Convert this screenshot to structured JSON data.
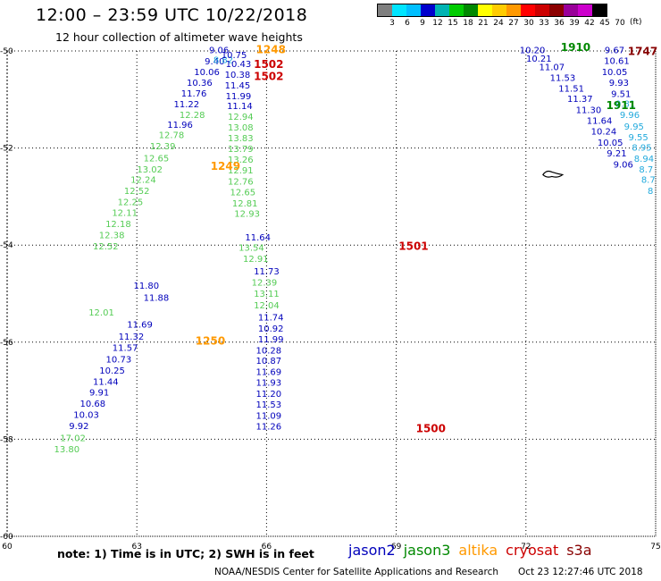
{
  "header": {
    "title": "12:00 – 23:59 UTC 10/22/2018",
    "subtitle": "12 hour collection of altimeter wave heights"
  },
  "legend": {
    "unit": "(ft)",
    "ticks": [
      "3",
      "6",
      "9",
      "12",
      "15",
      "18",
      "21",
      "24",
      "27",
      "30",
      "33",
      "36",
      "39",
      "42",
      "45",
      "70"
    ],
    "colors": [
      "#7f7f7f",
      "#00e5ff",
      "#00bfff",
      "#0000cd",
      "#00b3b3",
      "#00cc00",
      "#008800",
      "#ffff00",
      "#ffcc00",
      "#ff9900",
      "#ff0000",
      "#cc0000",
      "#8b0000",
      "#990099",
      "#cc00cc",
      "#000000"
    ]
  },
  "map": {
    "lon_range": [
      60,
      75
    ],
    "lat_range": [
      -60,
      -50
    ],
    "lon_ticks": [
      "60",
      "63",
      "66",
      "69",
      "72",
      "75"
    ],
    "lat_ticks": [
      "-50",
      "-52",
      "-54",
      "-56",
      "-58",
      "-60"
    ]
  },
  "colors": {
    "jason2": "#0000bb",
    "jason3": "#008800",
    "altika": "#ff9900",
    "cryosat": "#cc0000",
    "s3a": "#880000",
    "light_green": "#55cc55",
    "cyan": "#22aadd",
    "land": "#000000"
  },
  "tracks": [
    {
      "name": "track-a",
      "color_key": "jason2",
      "points": [
        {
          "lon": 64.9,
          "lat": -50.05,
          "v": "9.06"
        },
        {
          "lon": 64.8,
          "lat": -50.28,
          "v": "9.40"
        },
        {
          "lon": 64.62,
          "lat": -50.5,
          "v": "10.06"
        },
        {
          "lon": 64.45,
          "lat": -50.72,
          "v": "10.36"
        },
        {
          "lon": 64.32,
          "lat": -50.94,
          "v": "11.76"
        },
        {
          "lon": 64.15,
          "lat": -51.16,
          "v": "11.22"
        },
        {
          "lon": 64.0,
          "lat": -51.58,
          "v": "11.96"
        },
        {
          "lon": 63.22,
          "lat": -54.9,
          "v": "11.80"
        },
        {
          "lon": 63.45,
          "lat": -55.15,
          "v": "11.88"
        },
        {
          "lon": 63.07,
          "lat": -55.7,
          "v": "11.69"
        },
        {
          "lon": 62.87,
          "lat": -55.95,
          "v": "11.32"
        },
        {
          "lon": 62.73,
          "lat": -56.18,
          "v": "11.57"
        },
        {
          "lon": 62.58,
          "lat": -56.42,
          "v": "10.73"
        },
        {
          "lon": 62.43,
          "lat": -56.65,
          "v": "10.25"
        },
        {
          "lon": 62.28,
          "lat": -56.88,
          "v": "11.44"
        },
        {
          "lon": 62.13,
          "lat": -57.1,
          "v": "9.91"
        },
        {
          "lon": 61.98,
          "lat": -57.33,
          "v": "10.68"
        },
        {
          "lon": 61.83,
          "lat": -57.56,
          "v": "10.03"
        },
        {
          "lon": 61.66,
          "lat": -57.79,
          "v": "9.92"
        }
      ]
    },
    {
      "name": "track-b",
      "color_key": "light_green",
      "points": [
        {
          "lon": 64.28,
          "lat": -51.38,
          "v": "12.28"
        },
        {
          "lon": 63.8,
          "lat": -51.8,
          "v": "12.78"
        },
        {
          "lon": 63.6,
          "lat": -52.03,
          "v": "12.39"
        },
        {
          "lon": 63.45,
          "lat": -52.27,
          "v": "12.65"
        },
        {
          "lon": 63.3,
          "lat": -52.5,
          "v": "13.02"
        },
        {
          "lon": 63.15,
          "lat": -52.72,
          "v": "12.24"
        },
        {
          "lon": 63.0,
          "lat": -52.95,
          "v": "12.52"
        },
        {
          "lon": 62.85,
          "lat": -53.18,
          "v": "12.25"
        },
        {
          "lon": 62.72,
          "lat": -53.4,
          "v": "12.11"
        },
        {
          "lon": 62.57,
          "lat": -53.63,
          "v": "12.18"
        },
        {
          "lon": 62.42,
          "lat": -53.86,
          "v": "12.38"
        },
        {
          "lon": 62.28,
          "lat": -54.09,
          "v": "12.52"
        },
        {
          "lon": 62.18,
          "lat": -55.45,
          "v": "12.01"
        },
        {
          "lon": 61.52,
          "lat": -58.04,
          "v": "17.02"
        },
        {
          "lon": 61.38,
          "lat": -58.27,
          "v": "13.80"
        }
      ]
    },
    {
      "name": "track-c",
      "color_key": "cyan",
      "points": [
        {
          "lon": 65.0,
          "lat": -50.25,
          "v": "8.82"
        }
      ]
    },
    {
      "name": "track-d",
      "color_key": "jason2",
      "points": [
        {
          "lon": 65.25,
          "lat": -50.15,
          "v": "10.75"
        },
        {
          "lon": 65.35,
          "lat": -50.33,
          "v": "10.43"
        },
        {
          "lon": 65.33,
          "lat": -50.55,
          "v": "10.38"
        },
        {
          "lon": 65.33,
          "lat": -50.77,
          "v": "11.45"
        },
        {
          "lon": 65.35,
          "lat": -50.99,
          "v": "11.99"
        },
        {
          "lon": 65.38,
          "lat": -51.2,
          "v": "11.14"
        },
        {
          "lon": 65.8,
          "lat": -53.9,
          "v": "11.64"
        },
        {
          "lon": 66.0,
          "lat": -54.6,
          "v": "11.73"
        },
        {
          "lon": 66.1,
          "lat": -55.55,
          "v": "11.74"
        },
        {
          "lon": 66.1,
          "lat": -55.78,
          "v": "10.92"
        },
        {
          "lon": 66.1,
          "lat": -56.0,
          "v": "11.99"
        },
        {
          "lon": 66.05,
          "lat": -56.23,
          "v": "10.28"
        },
        {
          "lon": 66.05,
          "lat": -56.45,
          "v": "10.87"
        },
        {
          "lon": 66.05,
          "lat": -56.68,
          "v": "11.69"
        },
        {
          "lon": 66.05,
          "lat": -56.9,
          "v": "11.93"
        },
        {
          "lon": 66.05,
          "lat": -57.13,
          "v": "11.20"
        },
        {
          "lon": 66.05,
          "lat": -57.35,
          "v": "11.53"
        },
        {
          "lon": 66.05,
          "lat": -57.58,
          "v": "11.09"
        },
        {
          "lon": 66.05,
          "lat": -57.8,
          "v": "11.26"
        }
      ]
    },
    {
      "name": "track-e",
      "color_key": "light_green",
      "points": [
        {
          "lon": 65.4,
          "lat": -51.42,
          "v": "12.94"
        },
        {
          "lon": 65.4,
          "lat": -51.64,
          "v": "13.08"
        },
        {
          "lon": 65.4,
          "lat": -51.86,
          "v": "13.83"
        },
        {
          "lon": 65.4,
          "lat": -52.08,
          "v": "13.79"
        },
        {
          "lon": 65.4,
          "lat": -52.3,
          "v": "13.26"
        },
        {
          "lon": 65.4,
          "lat": -52.52,
          "v": "12.91"
        },
        {
          "lon": 65.4,
          "lat": -52.75,
          "v": "12.76"
        },
        {
          "lon": 65.45,
          "lat": -52.97,
          "v": "12.65"
        },
        {
          "lon": 65.5,
          "lat": -53.2,
          "v": "12.81"
        },
        {
          "lon": 65.55,
          "lat": -53.42,
          "v": "12.93"
        },
        {
          "lon": 65.65,
          "lat": -54.12,
          "v": "13.54"
        },
        {
          "lon": 65.75,
          "lat": -54.35,
          "v": "12.91"
        },
        {
          "lon": 65.95,
          "lat": -54.83,
          "v": "12.39"
        },
        {
          "lon": 66.0,
          "lat": -55.06,
          "v": "13.11"
        },
        {
          "lon": 66.0,
          "lat": -55.3,
          "v": "12.04"
        }
      ]
    },
    {
      "name": "track-f",
      "color_key": "jason2",
      "points": [
        {
          "lon": 72.15,
          "lat": -50.05,
          "v": "10.20"
        },
        {
          "lon": 72.3,
          "lat": -50.22,
          "v": "10.21"
        },
        {
          "lon": 72.6,
          "lat": -50.4,
          "v": "11.07"
        },
        {
          "lon": 72.85,
          "lat": -50.62,
          "v": "11.53"
        },
        {
          "lon": 73.05,
          "lat": -50.84,
          "v": "11.51"
        },
        {
          "lon": 73.25,
          "lat": -51.05,
          "v": "11.37"
        },
        {
          "lon": 73.45,
          "lat": -51.28,
          "v": "11.30"
        },
        {
          "lon": 73.7,
          "lat": -51.5,
          "v": "11.64"
        },
        {
          "lon": 73.8,
          "lat": -51.72,
          "v": "10.24"
        },
        {
          "lon": 73.95,
          "lat": -51.95,
          "v": "10.05"
        },
        {
          "lon": 74.1,
          "lat": -52.17,
          "v": "9.21"
        },
        {
          "lon": 74.25,
          "lat": -52.4,
          "v": "9.06"
        },
        {
          "lon": 74.05,
          "lat": -50.05,
          "v": "9.67"
        },
        {
          "lon": 74.1,
          "lat": -50.27,
          "v": "10.61"
        },
        {
          "lon": 74.05,
          "lat": -50.5,
          "v": "10.05"
        },
        {
          "lon": 74.15,
          "lat": -50.72,
          "v": "9.93"
        },
        {
          "lon": 74.2,
          "lat": -50.95,
          "v": "9.51"
        }
      ]
    },
    {
      "name": "track-g",
      "color_key": "cyan",
      "points": [
        {
          "lon": 74.3,
          "lat": -51.15,
          "v": "9.81"
        },
        {
          "lon": 74.4,
          "lat": -51.38,
          "v": "9.96"
        },
        {
          "lon": 74.5,
          "lat": -51.62,
          "v": "9.95"
        },
        {
          "lon": 74.6,
          "lat": -51.84,
          "v": "9.55"
        },
        {
          "lon": 74.68,
          "lat": -52.05,
          "v": "8.95"
        },
        {
          "lon": 74.73,
          "lat": -52.28,
          "v": "8.94"
        },
        {
          "lon": 74.78,
          "lat": -52.5,
          "v": "8.7"
        },
        {
          "lon": 74.83,
          "lat": -52.72,
          "v": "8.7"
        },
        {
          "lon": 74.88,
          "lat": -52.95,
          "v": "8"
        }
      ]
    }
  ],
  "pass_labels": [
    {
      "lon": 66.1,
      "lat": -50.05,
      "text": "1248",
      "color_key": "altika"
    },
    {
      "lon": 66.05,
      "lat": -50.35,
      "text": "1502",
      "color_key": "cryosat"
    },
    {
      "lon": 66.05,
      "lat": -50.6,
      "text": "1502",
      "color_key": "cryosat"
    },
    {
      "lon": 65.05,
      "lat": -52.45,
      "text": "1249",
      "color_key": "altika"
    },
    {
      "lon": 69.4,
      "lat": -54.1,
      "text": "1501",
      "color_key": "cryosat"
    },
    {
      "lon": 64.7,
      "lat": -56.05,
      "text": "1250",
      "color_key": "altika"
    },
    {
      "lon": 69.8,
      "lat": -57.85,
      "text": "1500",
      "color_key": "cryosat"
    },
    {
      "lon": 73.15,
      "lat": -50.0,
      "text": "1910",
      "color_key": "jason3"
    },
    {
      "lon": 74.7,
      "lat": -50.08,
      "text": "1747",
      "color_key": "s3a"
    },
    {
      "lon": 74.2,
      "lat": -51.2,
      "text": "1911",
      "color_key": "jason3"
    }
  ],
  "note": "note: 1) Time is in UTC; 2) SWH is in feet",
  "satellites": [
    {
      "label": "jason2",
      "color_key": "jason2"
    },
    {
      "label": "jason3",
      "color_key": "jason3"
    },
    {
      "label": "altika",
      "color_key": "altika"
    },
    {
      "label": "cryosat",
      "color_key": "cryosat"
    },
    {
      "label": "s3a",
      "color_key": "s3a"
    }
  ],
  "footer": {
    "credit": "NOAA/NESDIS Center for Satellite Applications and Research",
    "timestamp": "Oct 23 12:27:46 UTC 2018"
  }
}
